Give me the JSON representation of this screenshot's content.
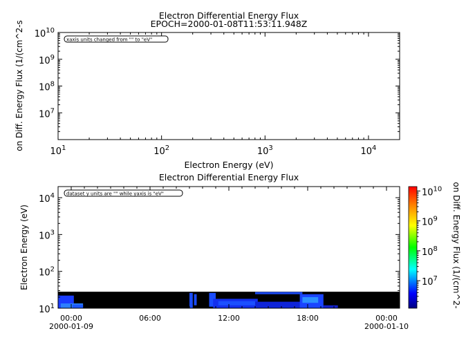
{
  "chart_data": [
    {
      "type": "line",
      "title": "Electron Differential Energy Flux",
      "subtitle": "EPOCH=2000-01-08T11:53:11.948Z",
      "xlabel": "Electron Energy (eV)",
      "ylabel": "on Diff. Energy Flux (1/(cm^2-s",
      "xscale": "log",
      "yscale": "log",
      "xlim": [
        10,
        20000
      ],
      "ylim": [
        1000000,
        10000000000
      ],
      "x_ticks": [
        {
          "value": 10,
          "base": "10",
          "exp": "1"
        },
        {
          "value": 100,
          "base": "10",
          "exp": "2"
        },
        {
          "value": 1000,
          "base": "10",
          "exp": "3"
        },
        {
          "value": 10000,
          "base": "10",
          "exp": "4"
        }
      ],
      "y_ticks": [
        {
          "value": 10000000,
          "base": "10",
          "exp": "7"
        },
        {
          "value": 100000000,
          "base": "10",
          "exp": "8"
        },
        {
          "value": 1000000000,
          "base": "10",
          "exp": "9"
        },
        {
          "value": 10000000000,
          "base": "10",
          "exp": "10"
        }
      ],
      "annotation": "xaxis units changed from \"\" to \"eV\"",
      "series": []
    },
    {
      "type": "heatmap",
      "title": "Electron Differential Energy Flux",
      "ylabel": "Electron Energy (eV)",
      "colorbar_label": "on Diff. Energy Flux (1/(cm^2-",
      "yscale": "log",
      "ylim": [
        10,
        20000
      ],
      "xlim_hours": [
        -1,
        25
      ],
      "x_ticks": [
        {
          "hour": 0,
          "label": "00:00",
          "sublabel": "2000-01-09"
        },
        {
          "hour": 6,
          "label": "06:00",
          "sublabel": ""
        },
        {
          "hour": 12,
          "label": "12:00",
          "sublabel": ""
        },
        {
          "hour": 18,
          "label": "18:00",
          "sublabel": ""
        },
        {
          "hour": 24,
          "label": "00:00",
          "sublabel": "2000-01-10"
        }
      ],
      "y_ticks": [
        {
          "value": 10,
          "base": "10",
          "exp": "1"
        },
        {
          "value": 100,
          "base": "10",
          "exp": "2"
        },
        {
          "value": 1000,
          "base": "10",
          "exp": "3"
        },
        {
          "value": 10000,
          "base": "10",
          "exp": "4"
        }
      ],
      "colorbar_ticks": [
        {
          "value": 10000000,
          "base": "10",
          "exp": "7"
        },
        {
          "value": 100000000,
          "base": "10",
          "exp": "8"
        },
        {
          "value": 1000000000,
          "base": "10",
          "exp": "9"
        },
        {
          "value": 10000000000,
          "base": "10",
          "exp": "10"
        }
      ],
      "colorbar_range": [
        1200000,
        14000000000
      ],
      "colorbar_scale": "log",
      "annotation": "dataset y units are \"\" while yaxis is \"eV\"",
      "data_band_energy": [
        10,
        28
      ],
      "background_color": "#000000",
      "patches": [
        {
          "start": -1.0,
          "end": 0.2,
          "emin": 10,
          "emax": 22,
          "color": "#1a3cff"
        },
        {
          "start": -0.8,
          "end": 0.9,
          "emin": 10,
          "emax": 13.5,
          "color": "#2c80ff"
        },
        {
          "start": 0.1,
          "end": 0.9,
          "emin": 10,
          "emax": 12.5,
          "color": "#1c58ff"
        },
        {
          "start": 9.0,
          "end": 9.25,
          "emin": 10,
          "emax": 26,
          "color": "#1a4cff"
        },
        {
          "start": 9.35,
          "end": 9.55,
          "emin": 12,
          "emax": 24,
          "color": "#1a4cff"
        },
        {
          "start": 10.5,
          "end": 11.0,
          "emin": 11,
          "emax": 26,
          "color": "#1a4cff"
        },
        {
          "start": 10.8,
          "end": 14.2,
          "emin": 10,
          "emax": 18,
          "color": "#1430ee"
        },
        {
          "start": 11.2,
          "end": 14.0,
          "emin": 12,
          "emax": 15.5,
          "color": "#1c50ff"
        },
        {
          "start": 14.0,
          "end": 17.5,
          "emin": 10,
          "emax": 15,
          "color": "#0f24d8"
        },
        {
          "start": 14.0,
          "end": 17.6,
          "emin": 24,
          "emax": 27.5,
          "color": "#1a48f0"
        },
        {
          "start": 17.4,
          "end": 19.2,
          "emin": 10,
          "emax": 24,
          "color": "#1a44ff"
        },
        {
          "start": 17.6,
          "end": 18.8,
          "emin": 14,
          "emax": 20,
          "color": "#2c90ff"
        },
        {
          "start": 19.2,
          "end": 20.3,
          "emin": 10,
          "emax": 12,
          "color": "#1220c8"
        }
      ]
    }
  ]
}
